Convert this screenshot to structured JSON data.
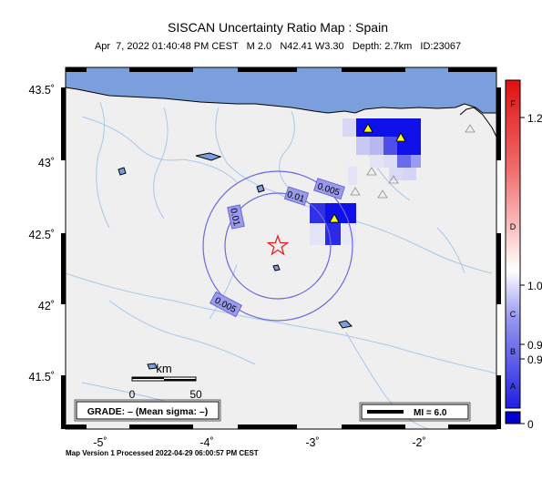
{
  "header": {
    "title": "SISCAN Uncertainty Ratio Map : Spain",
    "subtitle": "Apr  7, 2022 01:40:48 PM CEST   M 2.0   N42.41 W3.30   Depth: 2.7km   ID:23067"
  },
  "axes": {
    "lat_labels": [
      "43.5˚",
      "43˚",
      "42.5˚",
      "42˚",
      "41.5˚"
    ],
    "lon_labels": [
      "-5˚",
      "-4˚",
      "-3˚",
      "-2˚"
    ]
  },
  "contours": [
    "0.005",
    "0.01",
    "0.01",
    "0.005"
  ],
  "scale_bar": {
    "unit": "km",
    "start": "0",
    "end": "50"
  },
  "grade_box": "GRADE: – (Mean sigma: –)",
  "mi_legend": "MI = 6.0",
  "colorbar": {
    "letters": [
      "F",
      "D",
      "C",
      "B",
      "A"
    ],
    "values": [
      "1.2",
      "1.0",
      "0.9",
      "0.9",
      "0"
    ]
  },
  "colors": {
    "sea": "#7b9fdc",
    "land": "#efefef",
    "river": "#a8c8ea",
    "contour": "#6a6ad8",
    "epicenter": "#e82020",
    "station_active": "#ffff00"
  },
  "footer": "Map Version 1 Processed 2022-04-29 06:00:57 PM CEST"
}
